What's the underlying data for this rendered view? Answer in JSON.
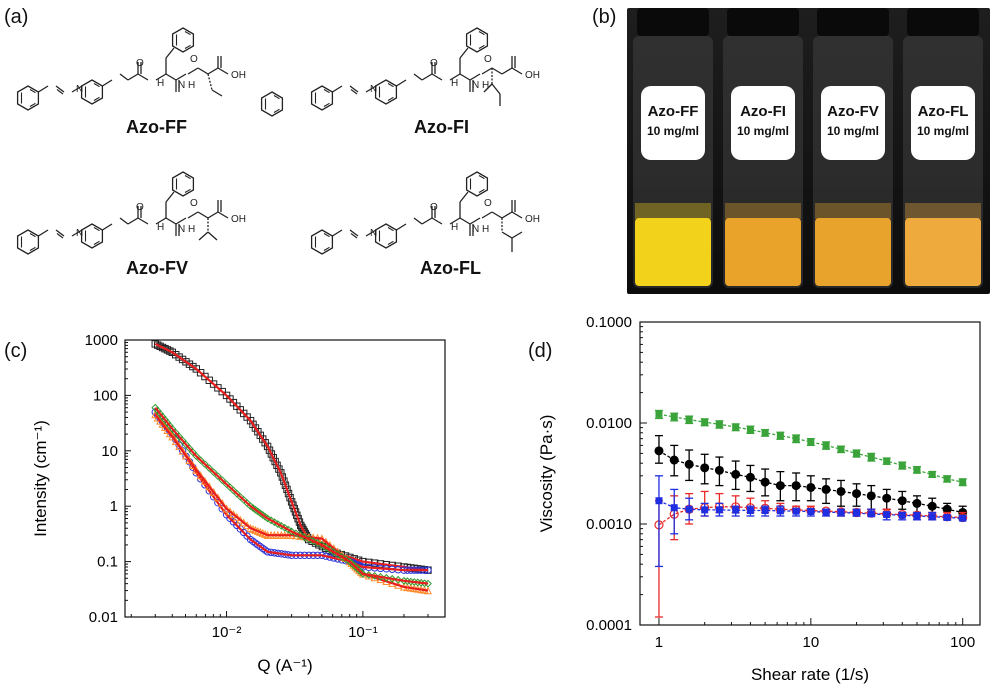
{
  "panel_a": {
    "label": "(a)",
    "molecules": [
      {
        "name": "Azo-FF"
      },
      {
        "name": "Azo-FI"
      },
      {
        "name": "Azo-FV"
      },
      {
        "name": "Azo-FL"
      }
    ],
    "atoms": {
      "N": "N",
      "H": "H",
      "NH": "N H",
      "O": "O",
      "OH": "OH"
    }
  },
  "panel_b": {
    "label": "(b)",
    "vials": [
      {
        "name": "Azo-FF",
        "conc": "10 mg/ml",
        "color": "#f3d21c"
      },
      {
        "name": "Azo-FI",
        "conc": "10 mg/ml",
        "color": "#e9a22a"
      },
      {
        "name": "Azo-FV",
        "conc": "10 mg/ml",
        "color": "#e7a32c"
      },
      {
        "name": "Azo-FL",
        "conc": "10 mg/ml",
        "color": "#eeaa3c"
      }
    ]
  },
  "panel_c": {
    "label": "(c)",
    "chart_data": {
      "type": "scatter",
      "xlabel": "Q (A⁻¹)",
      "ylabel": "Intensity (cm⁻¹)",
      "xscale": "log",
      "yscale": "log",
      "xlim": [
        0.0018,
        0.4
      ],
      "ylim": [
        0.01,
        1000
      ],
      "x_tick_labels": [
        "10⁻²",
        "10⁻¹"
      ],
      "y_tick_labels": [
        "0.01",
        "0.1",
        "1",
        "10",
        "100",
        "1000"
      ],
      "series": [
        {
          "color": "#222222",
          "marker": "square",
          "points": [
            [
              0.003,
              850
            ],
            [
              0.004,
              600
            ],
            [
              0.006,
              300
            ],
            [
              0.01,
              100
            ],
            [
              0.015,
              35
            ],
            [
              0.02,
              12
            ],
            [
              0.025,
              4
            ],
            [
              0.03,
              1.2
            ],
            [
              0.035,
              0.45
            ],
            [
              0.04,
              0.25
            ],
            [
              0.06,
              0.15
            ],
            [
              0.1,
              0.1
            ],
            [
              0.2,
              0.08
            ],
            [
              0.3,
              0.07
            ]
          ]
        },
        {
          "color": "#2b35d8",
          "marker": "circle",
          "points": [
            [
              0.003,
              50
            ],
            [
              0.004,
              20
            ],
            [
              0.006,
              4
            ],
            [
              0.01,
              0.7
            ],
            [
              0.015,
              0.25
            ],
            [
              0.02,
              0.15
            ],
            [
              0.03,
              0.13
            ],
            [
              0.05,
              0.13
            ],
            [
              0.08,
              0.1
            ],
            [
              0.1,
              0.08
            ],
            [
              0.2,
              0.07
            ],
            [
              0.3,
              0.07
            ]
          ]
        },
        {
          "color": "#ff8a2a",
          "marker": "triangle",
          "points": [
            [
              0.003,
              45
            ],
            [
              0.004,
              18
            ],
            [
              0.006,
              4.5
            ],
            [
              0.01,
              0.9
            ],
            [
              0.015,
              0.4
            ],
            [
              0.02,
              0.3
            ],
            [
              0.03,
              0.3
            ],
            [
              0.05,
              0.26
            ],
            [
              0.08,
              0.1
            ],
            [
              0.1,
              0.06
            ],
            [
              0.2,
              0.035
            ],
            [
              0.3,
              0.03
            ]
          ]
        },
        {
          "color": "#2e9a2e",
          "marker": "diamond",
          "points": [
            [
              0.003,
              60
            ],
            [
              0.004,
              25
            ],
            [
              0.006,
              8
            ],
            [
              0.01,
              2.5
            ],
            [
              0.015,
              1.0
            ],
            [
              0.02,
              0.6
            ],
            [
              0.03,
              0.35
            ],
            [
              0.05,
              0.2
            ],
            [
              0.08,
              0.1
            ],
            [
              0.1,
              0.06
            ],
            [
              0.2,
              0.045
            ],
            [
              0.3,
              0.04
            ]
          ]
        }
      ],
      "fit_color": "#e81e1e"
    }
  },
  "panel_d": {
    "label": "(d)",
    "chart_data": {
      "type": "line",
      "xlabel": "Shear rate (1/s)",
      "ylabel": "Viscosity (Pa·s)",
      "xscale": "log",
      "yscale": "log",
      "xlim": [
        0.75,
        130
      ],
      "ylim": [
        0.0001,
        0.1
      ],
      "x_tick_labels": [
        "1",
        "10",
        "100"
      ],
      "y_tick_labels": [
        "0.0001",
        "0.0010",
        "0.0100",
        "0.1000"
      ],
      "series": [
        {
          "color": "#3aa33a",
          "marker": "square",
          "x": [
            1,
            1.26,
            1.58,
            2,
            2.5,
            3.2,
            4,
            5,
            6.3,
            8,
            10,
            12.6,
            15.8,
            20,
            25,
            31.6,
            40,
            50,
            63,
            79,
            100
          ],
          "y": [
            0.0122,
            0.0115,
            0.0108,
            0.0102,
            0.0097,
            0.0091,
            0.0086,
            0.008,
            0.0075,
            0.007,
            0.0065,
            0.006,
            0.0055,
            0.005,
            0.0046,
            0.0042,
            0.0038,
            0.0034,
            0.0031,
            0.0028,
            0.0026
          ],
          "err_lo": [
            0.0111,
            0.0105,
            0.0099,
            0.0094,
            0.0089,
            0.0084,
            0.0079,
            0.0074,
            0.0069,
            0.0064,
            0.006,
            0.0055,
            0.0051,
            0.0046,
            0.0042,
            0.0039,
            0.0035,
            0.0032,
            0.0029,
            0.0026,
            0.0024
          ],
          "err_hi": [
            0.0133,
            0.0125,
            0.0117,
            0.011,
            0.0105,
            0.0098,
            0.0093,
            0.0086,
            0.0081,
            0.0076,
            0.007,
            0.0065,
            0.0059,
            0.0054,
            0.005,
            0.0045,
            0.0041,
            0.0037,
            0.0033,
            0.003,
            0.0028
          ]
        },
        {
          "color": "#000000",
          "marker": "circle",
          "x": [
            1,
            1.26,
            1.58,
            2,
            2.5,
            3.2,
            4,
            5,
            6.3,
            8,
            10,
            12.6,
            15.8,
            20,
            25,
            31.6,
            40,
            50,
            63,
            79,
            100
          ],
          "y": [
            0.0053,
            0.0043,
            0.0039,
            0.0036,
            0.0034,
            0.0031,
            0.0029,
            0.0026,
            0.0024,
            0.0024,
            0.0023,
            0.0022,
            0.0021,
            0.002,
            0.0019,
            0.0018,
            0.0017,
            0.0016,
            0.0015,
            0.0014,
            0.0013
          ],
          "err_lo": [
            0.004,
            0.003,
            0.0027,
            0.0025,
            0.0024,
            0.0022,
            0.0021,
            0.0019,
            0.0017,
            0.0017,
            0.0017,
            0.0016,
            0.0015,
            0.0015,
            0.0014,
            0.0014,
            0.0014,
            0.0013,
            0.0012,
            0.0012,
            0.0012
          ],
          "err_hi": [
            0.0075,
            0.006,
            0.0054,
            0.0049,
            0.0046,
            0.0042,
            0.0038,
            0.0035,
            0.0033,
            0.0032,
            0.003,
            0.0028,
            0.0027,
            0.0025,
            0.0024,
            0.0022,
            0.0021,
            0.0019,
            0.0018,
            0.0016,
            0.0015
          ]
        },
        {
          "color": "#e82a2a",
          "marker": "open-circle",
          "x": [
            1,
            1.26,
            1.58,
            2,
            2.5,
            3.2,
            4,
            5,
            6.3,
            8,
            10,
            12.6,
            15.8,
            20,
            25,
            31.6,
            40,
            50,
            63,
            79,
            100
          ],
          "y": [
            0.00098,
            0.00125,
            0.0014,
            0.00145,
            0.00148,
            0.00148,
            0.00145,
            0.00143,
            0.0014,
            0.00138,
            0.00136,
            0.00134,
            0.00132,
            0.0013,
            0.00128,
            0.00126,
            0.00124,
            0.00122,
            0.0012,
            0.00118,
            0.00116
          ],
          "err_lo": [
            0.00012,
            0.0007,
            0.001,
            0.0012,
            0.0013,
            0.0013,
            0.0013,
            0.0013,
            0.0013,
            0.0013,
            0.0013,
            0.0013,
            0.0012,
            0.0012,
            0.0012,
            0.0012,
            0.0012,
            0.0011,
            0.0011,
            0.0011,
            0.0011
          ],
          "err_hi": [
            0.0017,
            0.0019,
            0.002,
            0.0021,
            0.002,
            0.0019,
            0.0018,
            0.0017,
            0.0016,
            0.0015,
            0.0015,
            0.0014,
            0.0014,
            0.0014,
            0.0014,
            0.0014,
            0.0013,
            0.0013,
            0.0013,
            0.0013,
            0.0013
          ]
        },
        {
          "color": "#1f2ee0",
          "marker": "square",
          "x": [
            1,
            1.26,
            1.58,
            2,
            2.5,
            3.2,
            4,
            5,
            6.3,
            8,
            10,
            12.6,
            15.8,
            20,
            25,
            31.6,
            40,
            50,
            63,
            79,
            100
          ],
          "y": [
            0.0017,
            0.00145,
            0.0014,
            0.00138,
            0.00138,
            0.00137,
            0.00136,
            0.00136,
            0.00135,
            0.00134,
            0.00133,
            0.00131,
            0.0013,
            0.00128,
            0.00126,
            0.00124,
            0.00122,
            0.0012,
            0.00118,
            0.00116,
            0.00114
          ],
          "err_lo": [
            0.00038,
            0.0008,
            0.0011,
            0.0012,
            0.0012,
            0.0012,
            0.0012,
            0.0012,
            0.0012,
            0.0012,
            0.0012,
            0.0012,
            0.0012,
            0.0012,
            0.0012,
            0.0011,
            0.0011,
            0.0011,
            0.0011,
            0.0011,
            0.0011
          ],
          "err_hi": [
            0.003,
            0.0022,
            0.0018,
            0.0016,
            0.0016,
            0.0015,
            0.0015,
            0.0015,
            0.0015,
            0.0014,
            0.0014,
            0.0014,
            0.0014,
            0.0014,
            0.0014,
            0.0013,
            0.0013,
            0.0013,
            0.0013,
            0.0012,
            0.0012
          ]
        }
      ]
    }
  }
}
